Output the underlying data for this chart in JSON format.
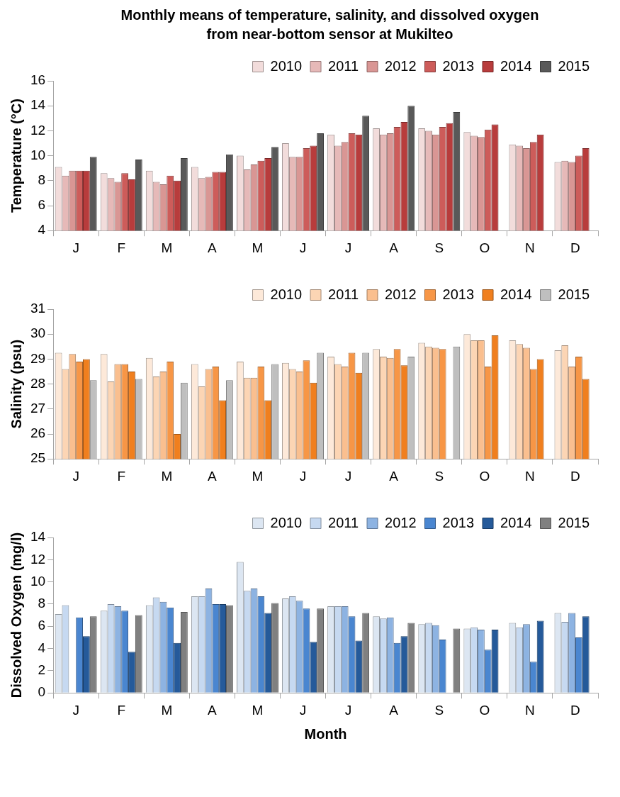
{
  "chart_data": [
    {
      "type": "bar",
      "title": "Monthly means of temperature, salinity, and dissolved oxygen\nfrom near-bottom sensor at Mukilteo",
      "ylabel": "Temperature (°C)",
      "categories": [
        "J",
        "F",
        "M",
        "A",
        "M",
        "J",
        "J",
        "A",
        "S",
        "O",
        "N",
        "D"
      ],
      "ylim": [
        4,
        16
      ],
      "yticks": [
        4,
        6,
        8,
        10,
        12,
        14,
        16
      ],
      "grid": false,
      "legend": "top right",
      "series": [
        {
          "name": "2010",
          "color": "#f2dcdb",
          "values": [
            9.1,
            8.6,
            8.8,
            9.1,
            10.0,
            11.0,
            11.7,
            12.2,
            12.2,
            11.9,
            10.9,
            9.5
          ]
        },
        {
          "name": "2011",
          "color": "#e6b9b8",
          "values": [
            8.4,
            8.2,
            7.9,
            8.2,
            8.9,
            9.9,
            10.8,
            11.7,
            12.0,
            11.6,
            10.8,
            9.6
          ]
        },
        {
          "name": "2012",
          "color": "#d99694",
          "values": [
            8.8,
            7.9,
            7.7,
            8.3,
            9.3,
            9.9,
            11.1,
            11.8,
            11.7,
            11.5,
            10.6,
            9.5
          ]
        },
        {
          "name": "2013",
          "color": "#cd5c5a",
          "values": [
            8.8,
            8.6,
            8.4,
            8.7,
            9.6,
            10.6,
            11.8,
            12.3,
            12.3,
            12.1,
            11.1,
            10.0
          ]
        },
        {
          "name": "2014",
          "color": "#b83c3c",
          "values": [
            8.8,
            8.1,
            8.0,
            8.7,
            9.8,
            10.8,
            11.7,
            12.7,
            12.6,
            12.5,
            11.7,
            10.6
          ]
        },
        {
          "name": "2015",
          "color": "#595959",
          "values": [
            9.9,
            9.7,
            9.8,
            10.1,
            10.7,
            11.8,
            13.2,
            14.0,
            13.5,
            null,
            null,
            null
          ]
        }
      ]
    },
    {
      "type": "bar",
      "ylabel": "Salinity (psu)",
      "categories": [
        "J",
        "F",
        "M",
        "A",
        "M",
        "J",
        "J",
        "A",
        "S",
        "O",
        "N",
        "D"
      ],
      "ylim": [
        25,
        31
      ],
      "yticks": [
        25,
        26,
        27,
        28,
        29,
        30,
        31
      ],
      "grid": false,
      "legend": "top right",
      "series": [
        {
          "name": "2010",
          "color": "#fde9d9",
          "values": [
            29.25,
            29.2,
            29.05,
            28.8,
            28.9,
            28.85,
            29.1,
            29.4,
            29.65,
            30.0,
            29.75,
            29.35
          ]
        },
        {
          "name": "2011",
          "color": "#fcd5b4",
          "values": [
            28.6,
            28.1,
            28.3,
            27.9,
            28.25,
            28.6,
            28.8,
            29.1,
            29.5,
            29.75,
            29.6,
            29.55
          ]
        },
        {
          "name": "2012",
          "color": "#fabf8f",
          "values": [
            29.2,
            28.8,
            28.5,
            28.6,
            28.25,
            28.5,
            28.7,
            29.05,
            29.45,
            29.75,
            29.45,
            28.7
          ]
        },
        {
          "name": "2013",
          "color": "#f79646",
          "values": [
            28.9,
            28.8,
            28.9,
            28.7,
            28.7,
            28.95,
            29.25,
            29.4,
            29.4,
            28.7,
            28.6,
            29.1
          ]
        },
        {
          "name": "2014",
          "color": "#f07f1e",
          "values": [
            29.0,
            28.5,
            26.0,
            27.35,
            27.35,
            28.05,
            28.45,
            28.75,
            null,
            29.95,
            29.0,
            28.2
          ]
        },
        {
          "name": "2015",
          "color": "#bfbfbf",
          "values": [
            28.15,
            28.2,
            28.05,
            28.15,
            28.8,
            29.25,
            29.25,
            29.1,
            29.5,
            null,
            null,
            null
          ]
        }
      ]
    },
    {
      "type": "bar",
      "ylabel": "Dissolved Oxygen (mg/l)",
      "xlabel": "Month",
      "categories": [
        "J",
        "F",
        "M",
        "A",
        "M",
        "J",
        "J",
        "A",
        "S",
        "O",
        "N",
        "D"
      ],
      "ylim": [
        0,
        14
      ],
      "yticks": [
        0,
        2,
        4,
        6,
        8,
        10,
        12,
        14
      ],
      "grid": false,
      "legend": "top right",
      "series": [
        {
          "name": "2010",
          "color": "#dce6f2",
          "values": [
            7.1,
            7.4,
            7.9,
            8.7,
            11.8,
            8.5,
            7.8,
            6.9,
            6.2,
            5.8,
            6.3,
            7.2
          ]
        },
        {
          "name": "2011",
          "color": "#c6d9f1",
          "values": [
            7.9,
            8.0,
            8.6,
            8.7,
            9.2,
            8.7,
            7.8,
            6.7,
            6.3,
            5.9,
            5.9,
            6.4
          ]
        },
        {
          "name": "2012",
          "color": "#8db3e2",
          "values": [
            null,
            7.8,
            8.2,
            9.4,
            9.4,
            8.3,
            7.8,
            6.8,
            6.1,
            5.7,
            6.2,
            7.2
          ]
        },
        {
          "name": "2013",
          "color": "#4a86d0",
          "values": [
            6.8,
            7.4,
            7.7,
            8.0,
            8.7,
            7.6,
            6.9,
            4.5,
            4.8,
            3.9,
            2.8,
            5.0
          ]
        },
        {
          "name": "2014",
          "color": "#255a9a",
          "values": [
            5.1,
            3.7,
            4.5,
            8.0,
            7.2,
            4.6,
            4.7,
            5.1,
            null,
            5.7,
            6.5,
            6.9
          ]
        },
        {
          "name": "2015",
          "color": "#808080",
          "values": [
            6.9,
            7.0,
            7.3,
            7.9,
            8.1,
            7.6,
            7.2,
            6.3,
            5.8,
            null,
            null,
            null
          ]
        }
      ]
    }
  ]
}
